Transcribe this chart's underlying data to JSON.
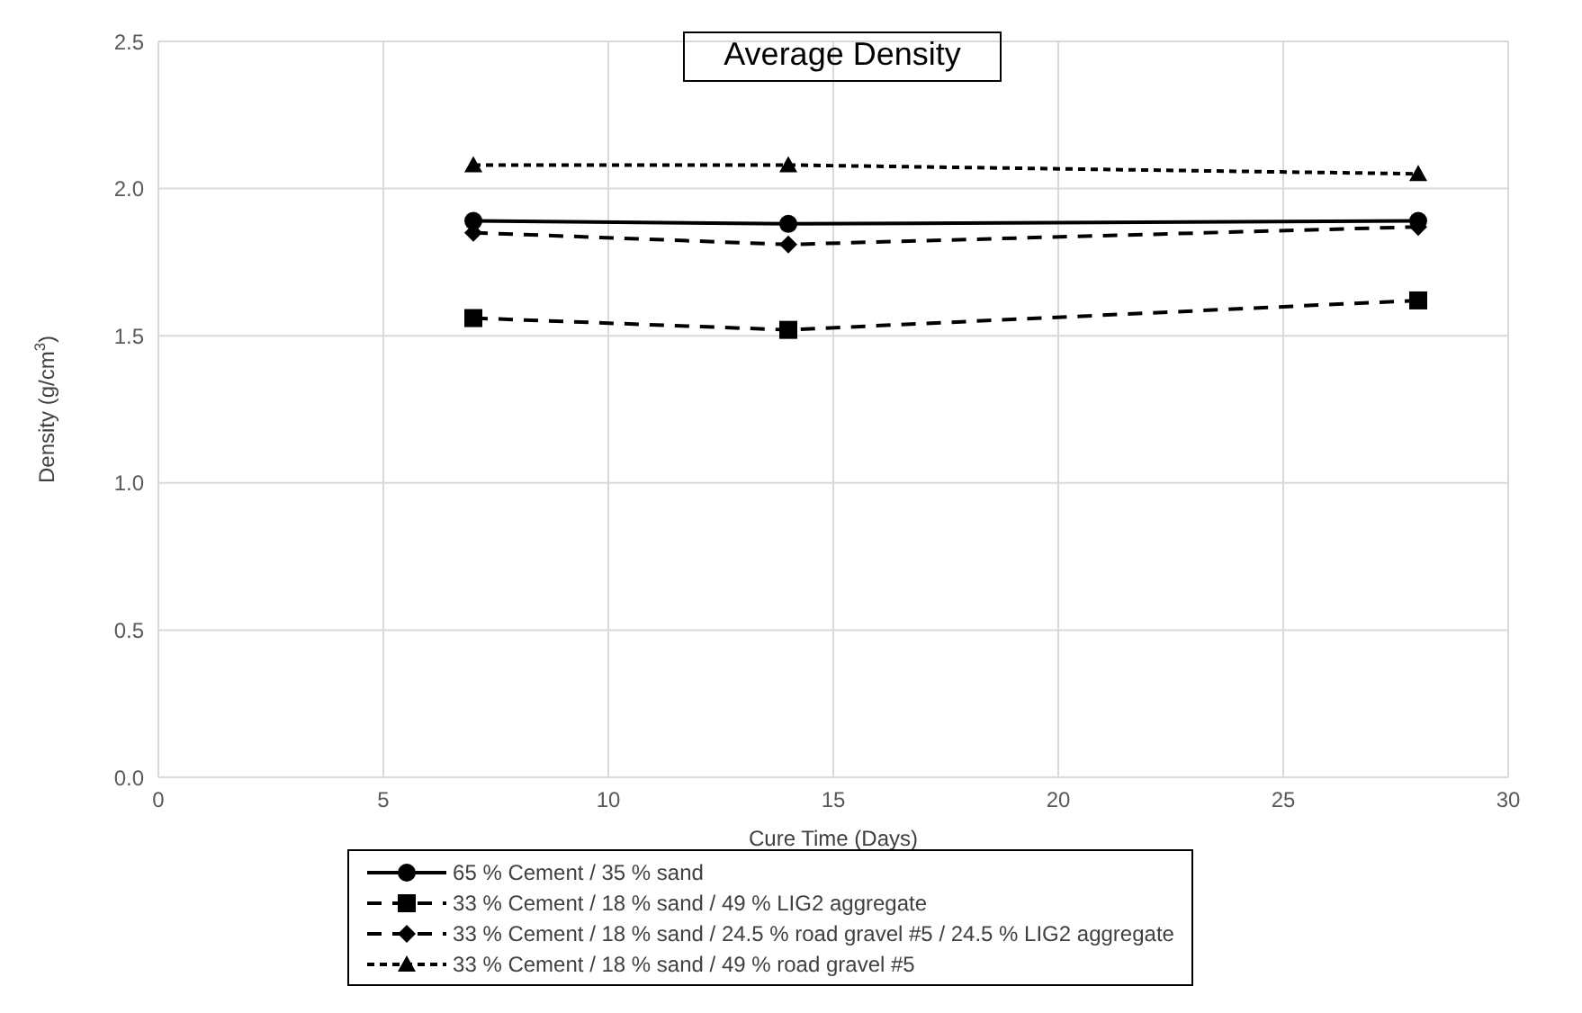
{
  "chart_data": {
    "type": "line",
    "title": "Average Density",
    "xlabel": "Cure Time (Days)",
    "ylabel": "Density (g/cm$^{3}$)",
    "x": [
      7,
      14,
      28
    ],
    "series": [
      {
        "name": "65 % Cement / 35 % sand",
        "color": "#000000",
        "values": [
          1.89,
          1.88,
          1.89
        ],
        "marker": "circle",
        "line_style": "solid"
      },
      {
        "name": "33 % Cement / 18 % sand / 49 % LIG2 aggregate",
        "color": "#000000",
        "values": [
          1.56,
          1.52,
          1.62
        ],
        "marker": "square",
        "line_style": "dashed"
      },
      {
        "name": "33 % Cement / 18 % sand / 24.5 % road gravel #5 / 24.5 % LIG2 aggregate",
        "color": "#000000",
        "values": [
          1.85,
          1.81,
          1.87
        ],
        "marker": "diamond",
        "line_style": "dashed"
      },
      {
        "name": "33 % Cement / 18 % sand / 49 % road gravel #5",
        "color": "#000000",
        "values": [
          2.08,
          2.08,
          2.05
        ],
        "marker": "triangle",
        "line_style": "dotted"
      }
    ],
    "xlim": [
      0,
      30
    ],
    "xticks": [
      0,
      5,
      10,
      15,
      20,
      25,
      30
    ],
    "ylim": [
      0,
      2.5
    ],
    "yticks": [
      {
        "value": 0,
        "label": "0.0"
      },
      {
        "value": 0.5,
        "label": "0.5"
      },
      {
        "value": 1,
        "label": "1.0"
      },
      {
        "value": 1.5,
        "label": "1.5"
      },
      {
        "value": 2,
        "label": "2.0"
      },
      {
        "value": 2.5,
        "label": "2.5"
      }
    ],
    "grid": true,
    "legend": "bottom"
  }
}
